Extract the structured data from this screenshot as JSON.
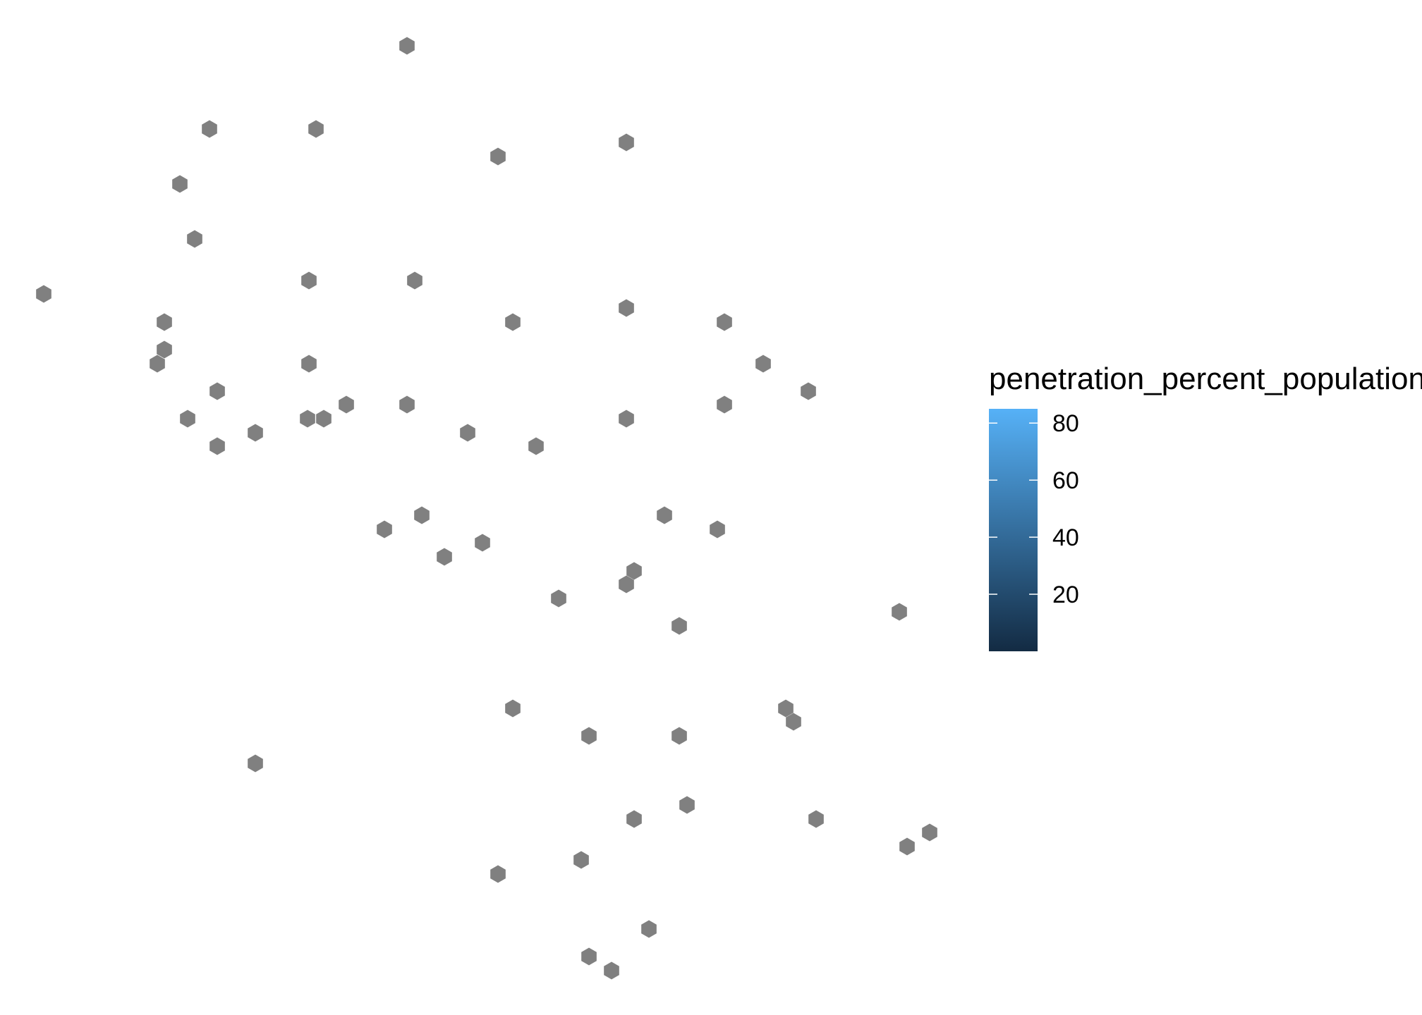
{
  "chart_data": {
    "type": "hexmap",
    "title": "",
    "xlabel": "",
    "ylabel": "",
    "grid": false,
    "axes_visible": false,
    "fill_color_na": "#808080",
    "x_range": [
      0,
      1350
    ],
    "y_range": [
      0,
      1440
    ],
    "points": [
      {
        "x": 577,
        "y": 65
      },
      {
        "x": 297,
        "y": 183
      },
      {
        "x": 448,
        "y": 183
      },
      {
        "x": 706,
        "y": 222
      },
      {
        "x": 888,
        "y": 202
      },
      {
        "x": 255,
        "y": 261
      },
      {
        "x": 276,
        "y": 339
      },
      {
        "x": 62,
        "y": 417
      },
      {
        "x": 438,
        "y": 398
      },
      {
        "x": 588,
        "y": 398
      },
      {
        "x": 233,
        "y": 457
      },
      {
        "x": 727,
        "y": 457
      },
      {
        "x": 888,
        "y": 437
      },
      {
        "x": 1027,
        "y": 457
      },
      {
        "x": 233,
        "y": 496
      },
      {
        "x": 223,
        "y": 516
      },
      {
        "x": 438,
        "y": 516
      },
      {
        "x": 1082,
        "y": 516
      },
      {
        "x": 308,
        "y": 555
      },
      {
        "x": 1146,
        "y": 555
      },
      {
        "x": 266,
        "y": 594
      },
      {
        "x": 436,
        "y": 594
      },
      {
        "x": 459,
        "y": 594
      },
      {
        "x": 491,
        "y": 574
      },
      {
        "x": 577,
        "y": 574
      },
      {
        "x": 1027,
        "y": 574
      },
      {
        "x": 888,
        "y": 594
      },
      {
        "x": 308,
        "y": 633
      },
      {
        "x": 362,
        "y": 614
      },
      {
        "x": 663,
        "y": 614
      },
      {
        "x": 760,
        "y": 633
      },
      {
        "x": 545,
        "y": 751
      },
      {
        "x": 598,
        "y": 731
      },
      {
        "x": 942,
        "y": 731
      },
      {
        "x": 1017,
        "y": 751
      },
      {
        "x": 630,
        "y": 790
      },
      {
        "x": 684,
        "y": 770
      },
      {
        "x": 899,
        "y": 810
      },
      {
        "x": 888,
        "y": 829
      },
      {
        "x": 792,
        "y": 849
      },
      {
        "x": 963,
        "y": 888
      },
      {
        "x": 1275,
        "y": 868
      },
      {
        "x": 727,
        "y": 1005
      },
      {
        "x": 1114,
        "y": 1005
      },
      {
        "x": 1125,
        "y": 1024
      },
      {
        "x": 835,
        "y": 1044
      },
      {
        "x": 963,
        "y": 1044
      },
      {
        "x": 362,
        "y": 1083
      },
      {
        "x": 974,
        "y": 1142
      },
      {
        "x": 899,
        "y": 1162
      },
      {
        "x": 1157,
        "y": 1162
      },
      {
        "x": 1286,
        "y": 1201
      },
      {
        "x": 1318,
        "y": 1181
      },
      {
        "x": 824,
        "y": 1220
      },
      {
        "x": 706,
        "y": 1240
      },
      {
        "x": 920,
        "y": 1318
      },
      {
        "x": 835,
        "y": 1357
      },
      {
        "x": 867,
        "y": 1377
      }
    ],
    "legend": {
      "title": "penetration_percent_population",
      "placement": "right",
      "type": "colorbar",
      "range": [
        0,
        85
      ],
      "ticks": [
        20,
        40,
        60,
        80
      ],
      "tick_labels": [
        "20",
        "40",
        "60",
        "80"
      ],
      "color_low": "#132B43",
      "color_high": "#56B1F7"
    }
  }
}
